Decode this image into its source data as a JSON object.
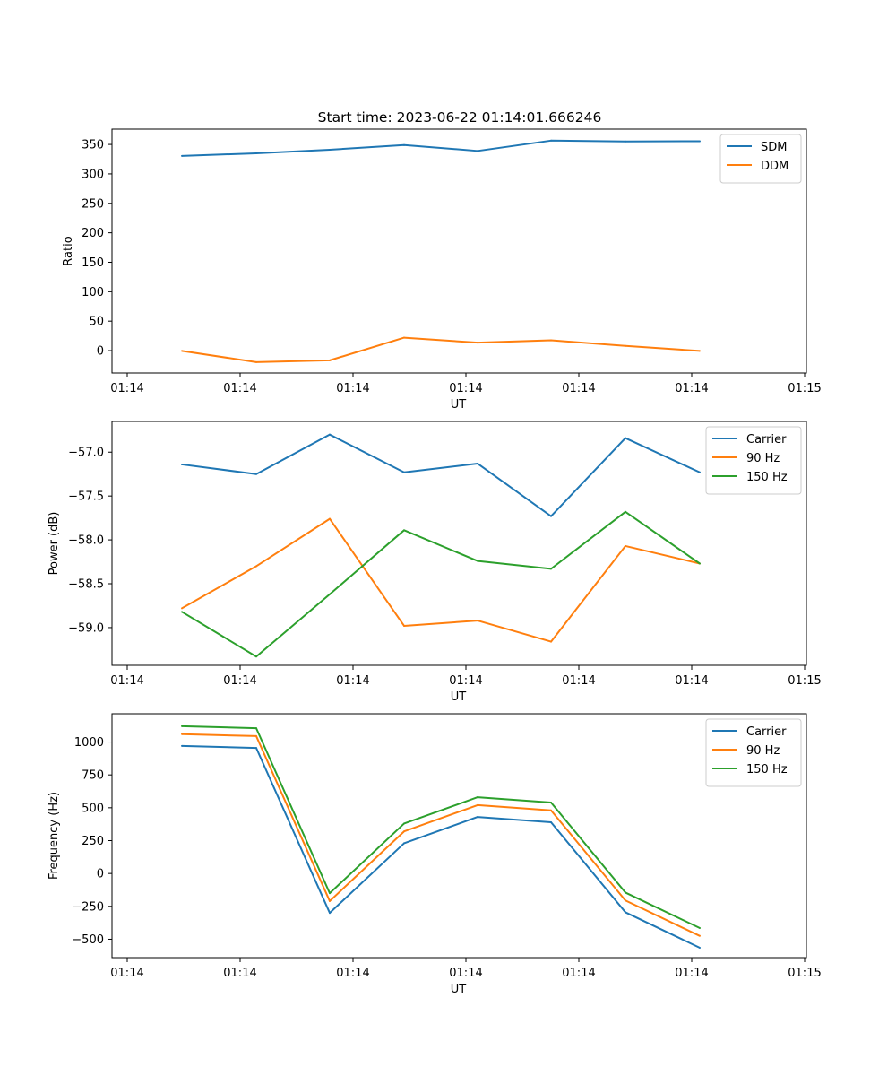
{
  "figure": {
    "title": "Start time: 2023-06-22 01:14:01.666246"
  },
  "chart_data": [
    {
      "type": "line",
      "xlabel": "UT",
      "ylabel": "Ratio",
      "x_tick_labels": [
        "01:14",
        "01:14",
        "01:14",
        "01:14",
        "01:14",
        "01:14",
        "01:15"
      ],
      "y_ticks": [
        0,
        50,
        100,
        150,
        200,
        250,
        300,
        350
      ],
      "y_tick_labels": [
        "0",
        "50",
        "100",
        "150",
        "200",
        "250",
        "300",
        "350"
      ],
      "ylim": [
        -38,
        376
      ],
      "legend_position": "upper right",
      "grid": false,
      "series": [
        {
          "name": "SDM",
          "color": "#1f77b4",
          "values": [
            330.5,
            335,
            341,
            349,
            339,
            356.5,
            355,
            355.5
          ]
        },
        {
          "name": "DDM",
          "color": "#ff7f0e",
          "values": [
            -0.5,
            -19.5,
            -16.5,
            22,
            13.5,
            17.5,
            8,
            -0.5
          ]
        }
      ]
    },
    {
      "type": "line",
      "xlabel": "UT",
      "ylabel": "Power (dB)",
      "x_tick_labels": [
        "01:14",
        "01:14",
        "01:14",
        "01:14",
        "01:14",
        "01:14",
        "01:15"
      ],
      "y_ticks": [
        -59.0,
        -58.5,
        -58.0,
        -57.5,
        -57.0
      ],
      "y_tick_labels": [
        "−59.0",
        "−58.5",
        "−58.0",
        "−57.5",
        "−57.0"
      ],
      "ylim": [
        -59.43,
        -56.65
      ],
      "legend_position": "upper right",
      "grid": false,
      "series": [
        {
          "name": "Carrier",
          "color": "#1f77b4",
          "values": [
            -57.14,
            -57.25,
            -56.8,
            -57.23,
            -57.13,
            -57.73,
            -56.84,
            -57.23
          ]
        },
        {
          "name": "90 Hz",
          "color": "#ff7f0e",
          "values": [
            -58.78,
            -58.3,
            -57.76,
            -58.98,
            -58.92,
            -59.16,
            -58.07,
            -58.27
          ]
        },
        {
          "name": "150 Hz",
          "color": "#2ca02c",
          "values": [
            -58.82,
            -59.33,
            -58.62,
            -57.89,
            -58.24,
            -58.33,
            -57.68,
            -58.27
          ]
        }
      ]
    },
    {
      "type": "line",
      "xlabel": "UT",
      "ylabel": "Frequency (Hz)",
      "x_tick_labels": [
        "01:14",
        "01:14",
        "01:14",
        "01:14",
        "01:14",
        "01:14",
        "01:15"
      ],
      "y_ticks": [
        -500,
        -250,
        0,
        250,
        500,
        750,
        1000
      ],
      "y_tick_labels": [
        "−500",
        "−250",
        "0",
        "250",
        "500",
        "750",
        "1000"
      ],
      "ylim": [
        -640,
        1215
      ],
      "legend_position": "upper right",
      "grid": false,
      "series": [
        {
          "name": "Carrier",
          "color": "#1f77b4",
          "values": [
            970,
            955,
            -300,
            230,
            430,
            390,
            -295,
            -565
          ]
        },
        {
          "name": "90 Hz",
          "color": "#ff7f0e",
          "values": [
            1060,
            1045,
            -210,
            320,
            520,
            480,
            -205,
            -475
          ]
        },
        {
          "name": "150 Hz",
          "color": "#2ca02c",
          "values": [
            1120,
            1105,
            -150,
            380,
            580,
            540,
            -145,
            -415
          ]
        }
      ]
    }
  ]
}
